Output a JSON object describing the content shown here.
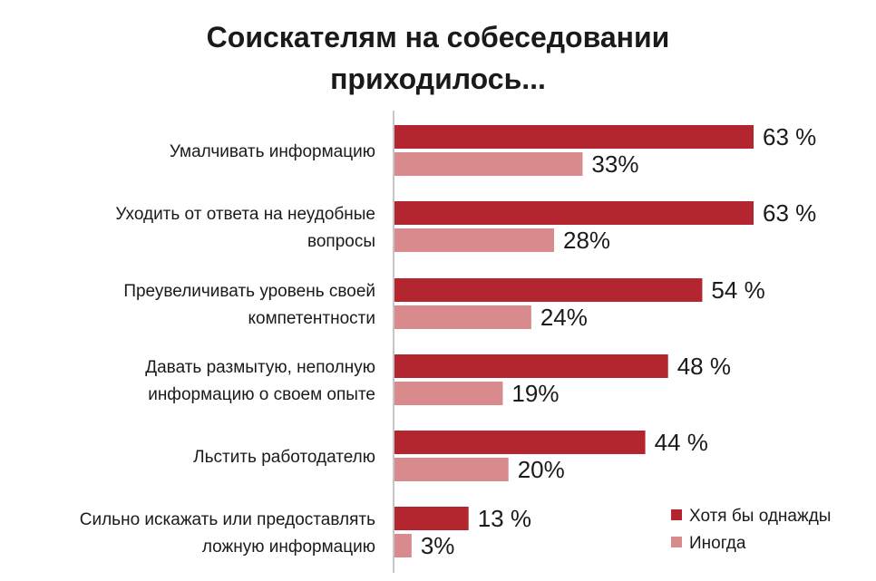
{
  "title_lines": [
    "Соискателям  на собеседовании",
    "приходилось..."
  ],
  "chart_data": {
    "type": "bar",
    "orientation": "horizontal",
    "title": "Соискателям  на собеседовании приходилось...",
    "categories": [
      [
        "Умалчивать информацию"
      ],
      [
        "Уходить от ответа на неудобные",
        "вопросы"
      ],
      [
        "Преувеличивать уровень своей",
        "компетентности"
      ],
      [
        "Давать размытую, неполную",
        "информацию о своем опыте"
      ],
      [
        "Льстить работодателю"
      ],
      [
        "Сильно искажать или предоставлять",
        "ложную информацию"
      ]
    ],
    "series": [
      {
        "name": "Хотя бы однажды",
        "color": "#b3262f",
        "values": [
          63,
          63,
          54,
          48,
          44,
          13
        ],
        "labels": [
          "63 %",
          "63 %",
          "54 %",
          "48 %",
          "44 %",
          "13 %"
        ]
      },
      {
        "name": "Иногда",
        "color": "#d98a8d",
        "values": [
          33,
          28,
          24,
          19,
          20,
          3
        ],
        "labels": [
          "33%",
          "28%",
          "24%",
          "19%",
          "20%",
          "3%"
        ]
      }
    ],
    "legend": "bottom-right",
    "grid": false,
    "xlim": [
      0,
      63
    ]
  }
}
